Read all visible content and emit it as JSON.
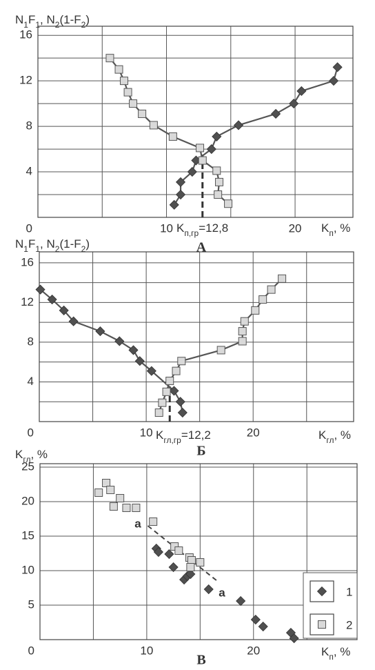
{
  "chart_data": [
    {
      "type": "line",
      "y_label": [
        "N",
        "1",
        "F",
        "1",
        ", N",
        "2",
        "(1-F",
        "2",
        ")"
      ],
      "x_label": [
        "K",
        "п",
        ", %"
      ],
      "caption": "А",
      "xlim": [
        0,
        24.5
      ],
      "ylim": [
        0,
        16.8
      ],
      "xticks": [
        10,
        20
      ],
      "yticks": [
        0,
        4,
        8,
        12,
        16
      ],
      "xgrid": [
        0,
        5,
        10,
        15,
        20
      ],
      "ygrid": [
        0,
        2,
        4,
        6,
        8,
        10,
        12,
        14,
        16
      ],
      "threshold": {
        "x": 12.8,
        "label": [
          "K",
          "п,гр",
          "=12,8"
        ]
      },
      "series": [
        {
          "marker": "diamond",
          "color": "#505050",
          "x": [
            10.6,
            11.1,
            11.1,
            12.0,
            12.3,
            13.5,
            13.9,
            15.6,
            18.5,
            19.9,
            20.5,
            23.0,
            23.3
          ],
          "values": [
            1.1,
            2.0,
            3.1,
            4.0,
            5.0,
            6.0,
            7.1,
            8.1,
            9.1,
            10.0,
            11.1,
            12.0,
            13.2
          ]
        },
        {
          "marker": "square",
          "color": "#d9d9d9",
          "x": [
            5.6,
            6.3,
            6.7,
            7.0,
            7.4,
            8.1,
            9.0,
            10.5,
            12.6,
            12.8,
            13.9,
            14.1,
            14.0,
            14.8
          ],
          "values": [
            14.0,
            13.0,
            12.0,
            11.0,
            10.0,
            9.1,
            8.1,
            7.1,
            6.1,
            5.0,
            4.1,
            3.1,
            2.0,
            1.2
          ]
        }
      ]
    },
    {
      "type": "line",
      "y_label": [
        "N",
        "1",
        "F",
        "1",
        ", N",
        "2",
        "(1-F",
        "2",
        ")"
      ],
      "x_label": [
        "K",
        "гл",
        ", %"
      ],
      "caption": "Б",
      "xlim": [
        0,
        29.4
      ],
      "ylim": [
        0,
        17.1
      ],
      "xticks": [
        10,
        20
      ],
      "yticks": [
        0,
        4,
        8,
        12,
        16
      ],
      "xgrid": [
        0,
        5,
        10,
        15,
        20,
        25
      ],
      "ygrid": [
        0,
        2,
        4,
        6,
        8,
        10,
        12,
        14,
        16
      ],
      "threshold": {
        "x": 12.2,
        "label": [
          "K",
          "гл,гр",
          "=12,2"
        ]
      },
      "series": [
        {
          "marker": "diamond",
          "color": "#505050",
          "x": [
            0.1,
            1.2,
            2.3,
            3.2,
            5.7,
            7.5,
            8.8,
            9.4,
            10.5,
            12.6,
            13.2,
            13.4
          ],
          "values": [
            13.3,
            12.3,
            11.2,
            10.1,
            9.1,
            8.1,
            7.2,
            6.1,
            5.1,
            3.1,
            2.0,
            0.9
          ]
        },
        {
          "marker": "square",
          "color": "#d9d9d9",
          "x": [
            11.2,
            11.5,
            11.9,
            12.2,
            12.8,
            13.3,
            17.0,
            19.0,
            19.0,
            19.2,
            20.2,
            20.9,
            21.7,
            22.7
          ],
          "values": [
            0.9,
            1.9,
            3.0,
            4.1,
            5.1,
            6.1,
            7.2,
            8.1,
            9.1,
            10.1,
            11.2,
            12.3,
            13.3,
            14.4
          ]
        }
      ]
    },
    {
      "type": "scatter",
      "y_label": [
        "K",
        "гл",
        ", %"
      ],
      "x_label": [
        "K",
        "п",
        ", %"
      ],
      "caption": "В",
      "xlim": [
        0,
        29.7
      ],
      "ylim": [
        0,
        25.5
      ],
      "xticks": [
        10,
        20
      ],
      "yticks": [
        0,
        5,
        10,
        15,
        20,
        25
      ],
      "xgrid": [
        0,
        5,
        10,
        15,
        20,
        25
      ],
      "ygrid": [
        0,
        5,
        10,
        15,
        20,
        25
      ],
      "trend_line": {
        "x": [
          10.1,
          16.6
        ],
        "values": [
          16.5,
          8.5
        ]
      },
      "annotations": [
        "a",
        "a"
      ],
      "legend": "lower right",
      "series": [
        {
          "name": "1",
          "marker": "diamond",
          "color": "#505050",
          "x": [
            10.9,
            11.1,
            12.1,
            12.5,
            13.5,
            13.8,
            14.1,
            15.8,
            18.8,
            20.2,
            20.9,
            23.5,
            23.8
          ],
          "values": [
            13.2,
            12.7,
            12.4,
            10.5,
            8.7,
            9.2,
            9.5,
            7.3,
            5.6,
            2.9,
            1.9,
            1.0,
            0.2
          ]
        },
        {
          "name": "2",
          "marker": "square",
          "color": "#d9d9d9",
          "x": [
            5.5,
            6.2,
            6.6,
            6.9,
            7.5,
            8.1,
            9.0,
            10.6,
            12.6,
            13.0,
            14.0,
            14.2,
            14.1,
            15.0
          ],
          "values": [
            21.3,
            22.7,
            21.7,
            19.3,
            20.5,
            19.1,
            19.1,
            17.1,
            13.5,
            12.9,
            11.9,
            11.5,
            10.5,
            11.2
          ]
        }
      ]
    }
  ]
}
